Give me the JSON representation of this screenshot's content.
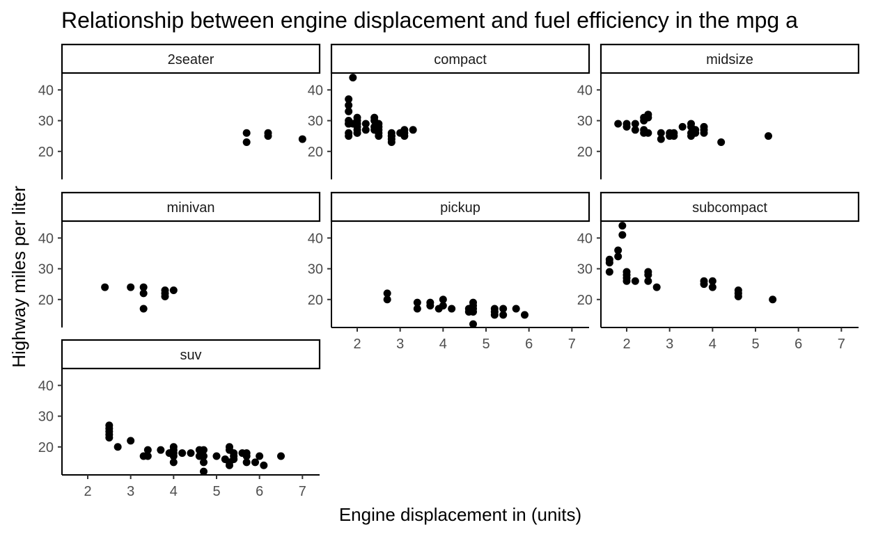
{
  "chart_data": {
    "type": "scatter",
    "title": "Relationship between engine displacement and fuel efficiency in the mpg a",
    "xlabel": "Engine displacement in (units)",
    "ylabel": "Highway miles per liter",
    "xlim": [
      1.4,
      7.4
    ],
    "ylim": [
      10.9,
      45.5
    ],
    "x_ticks": [
      2,
      3,
      4,
      5,
      6,
      7
    ],
    "y_ticks": [
      20,
      30,
      40
    ],
    "grid": false,
    "legend": "none",
    "color": "#000000",
    "facet_layout": "3 columns, 3 rows",
    "facets": [
      {
        "name": "2seater",
        "points": [
          [
            5.7,
            26
          ],
          [
            5.7,
            23
          ],
          [
            6.2,
            26
          ],
          [
            6.2,
            25
          ],
          [
            7.0,
            24
          ]
        ]
      },
      {
        "name": "compact",
        "points": [
          [
            1.8,
            29
          ],
          [
            1.8,
            29
          ],
          [
            1.8,
            26
          ],
          [
            1.8,
            25
          ],
          [
            1.8,
            29
          ],
          [
            1.8,
            30
          ],
          [
            1.8,
            35
          ],
          [
            1.8,
            37
          ],
          [
            1.8,
            33
          ],
          [
            1.9,
            44
          ],
          [
            1.9,
            29
          ],
          [
            2.0,
            31
          ],
          [
            2.0,
            28
          ],
          [
            2.0,
            26
          ],
          [
            2.0,
            29
          ],
          [
            2.0,
            27
          ],
          [
            2.0,
            30
          ],
          [
            2.0,
            26
          ],
          [
            2.0,
            29
          ],
          [
            2.2,
            27
          ],
          [
            2.2,
            29
          ],
          [
            2.4,
            27
          ],
          [
            2.4,
            28
          ],
          [
            2.4,
            31
          ],
          [
            2.4,
            30
          ],
          [
            2.5,
            26
          ],
          [
            2.5,
            29
          ],
          [
            2.5,
            27
          ],
          [
            2.5,
            25
          ],
          [
            2.5,
            28
          ],
          [
            2.8,
            26
          ],
          [
            2.8,
            25
          ],
          [
            2.8,
            24
          ],
          [
            2.8,
            23
          ],
          [
            2.8,
            25
          ],
          [
            3.0,
            26
          ],
          [
            3.1,
            27
          ],
          [
            3.1,
            26
          ],
          [
            3.1,
            25
          ],
          [
            3.3,
            27
          ]
        ]
      },
      {
        "name": "midsize",
        "points": [
          [
            1.8,
            29
          ],
          [
            2.0,
            28
          ],
          [
            2.0,
            29
          ],
          [
            2.2,
            27
          ],
          [
            2.2,
            29
          ],
          [
            2.4,
            27
          ],
          [
            2.4,
            30
          ],
          [
            2.4,
            31
          ],
          [
            2.4,
            26
          ],
          [
            2.5,
            32
          ],
          [
            2.5,
            31
          ],
          [
            2.5,
            26
          ],
          [
            2.8,
            26
          ],
          [
            2.8,
            24
          ],
          [
            3.0,
            26
          ],
          [
            3.0,
            25
          ],
          [
            3.1,
            26
          ],
          [
            3.1,
            25
          ],
          [
            3.3,
            28
          ],
          [
            3.5,
            29
          ],
          [
            3.5,
            28
          ],
          [
            3.5,
            26
          ],
          [
            3.5,
            25
          ],
          [
            3.6,
            27
          ],
          [
            3.6,
            26
          ],
          [
            3.8,
            28
          ],
          [
            3.8,
            27
          ],
          [
            3.8,
            26
          ],
          [
            4.2,
            23
          ],
          [
            5.3,
            25
          ]
        ]
      },
      {
        "name": "minivan",
        "points": [
          [
            2.4,
            24
          ],
          [
            3.0,
            24
          ],
          [
            3.3,
            24
          ],
          [
            3.3,
            22
          ],
          [
            3.3,
            17
          ],
          [
            3.8,
            23
          ],
          [
            3.8,
            22
          ],
          [
            3.8,
            21
          ],
          [
            4.0,
            23
          ]
        ]
      },
      {
        "name": "pickup",
        "points": [
          [
            2.7,
            22
          ],
          [
            2.7,
            20
          ],
          [
            3.4,
            19
          ],
          [
            3.4,
            17
          ],
          [
            3.7,
            19
          ],
          [
            3.7,
            18
          ],
          [
            3.9,
            17
          ],
          [
            4.0,
            20
          ],
          [
            4.0,
            18
          ],
          [
            4.2,
            17
          ],
          [
            4.6,
            17
          ],
          [
            4.6,
            16
          ],
          [
            4.7,
            19
          ],
          [
            4.7,
            18
          ],
          [
            4.7,
            17
          ],
          [
            4.7,
            16
          ],
          [
            4.7,
            12
          ],
          [
            5.2,
            17
          ],
          [
            5.2,
            16
          ],
          [
            5.2,
            15
          ],
          [
            5.4,
            17
          ],
          [
            5.4,
            15
          ],
          [
            5.7,
            17
          ],
          [
            5.9,
            15
          ]
        ]
      },
      {
        "name": "subcompact",
        "points": [
          [
            1.6,
            33
          ],
          [
            1.6,
            32
          ],
          [
            1.6,
            29
          ],
          [
            1.8,
            34
          ],
          [
            1.8,
            36
          ],
          [
            1.9,
            44
          ],
          [
            1.9,
            41
          ],
          [
            2.0,
            29
          ],
          [
            2.0,
            28
          ],
          [
            2.0,
            27
          ],
          [
            2.0,
            26
          ],
          [
            2.2,
            26
          ],
          [
            2.5,
            29
          ],
          [
            2.5,
            28
          ],
          [
            2.5,
            26
          ],
          [
            2.7,
            24
          ],
          [
            3.8,
            26
          ],
          [
            3.8,
            25
          ],
          [
            4.0,
            26
          ],
          [
            4.0,
            24
          ],
          [
            4.6,
            23
          ],
          [
            4.6,
            22
          ],
          [
            4.6,
            21
          ],
          [
            5.4,
            20
          ]
        ]
      },
      {
        "name": "suv",
        "points": [
          [
            2.5,
            27
          ],
          [
            2.5,
            26
          ],
          [
            2.5,
            25
          ],
          [
            2.5,
            24
          ],
          [
            2.5,
            23
          ],
          [
            2.7,
            20
          ],
          [
            3.0,
            22
          ],
          [
            3.3,
            17
          ],
          [
            3.4,
            19
          ],
          [
            3.4,
            17
          ],
          [
            3.7,
            19
          ],
          [
            3.9,
            18
          ],
          [
            4.0,
            20
          ],
          [
            4.0,
            19
          ],
          [
            4.0,
            18
          ],
          [
            4.0,
            17
          ],
          [
            4.0,
            15
          ],
          [
            4.2,
            18
          ],
          [
            4.4,
            18
          ],
          [
            4.6,
            19
          ],
          [
            4.6,
            17
          ],
          [
            4.7,
            19
          ],
          [
            4.7,
            17
          ],
          [
            4.7,
            15
          ],
          [
            4.7,
            12
          ],
          [
            5.0,
            17
          ],
          [
            5.2,
            16
          ],
          [
            5.3,
            20
          ],
          [
            5.3,
            19
          ],
          [
            5.3,
            15
          ],
          [
            5.3,
            14
          ],
          [
            5.4,
            18
          ],
          [
            5.4,
            17
          ],
          [
            5.4,
            16
          ],
          [
            5.6,
            18
          ],
          [
            5.7,
            18
          ],
          [
            5.7,
            17
          ],
          [
            5.7,
            15
          ],
          [
            5.9,
            15
          ],
          [
            6.0,
            17
          ],
          [
            6.1,
            14
          ],
          [
            6.5,
            17
          ]
        ]
      }
    ]
  }
}
